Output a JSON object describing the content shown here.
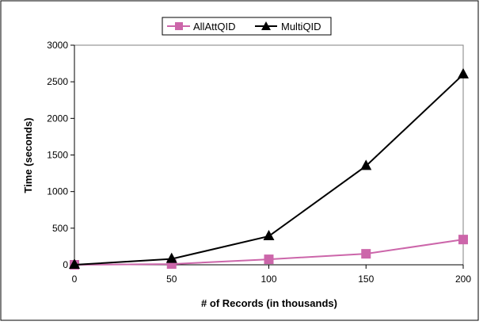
{
  "chart_data": {
    "type": "line",
    "title": "",
    "xlabel": "# of Records (in thousands)",
    "ylabel": "Time (seconds)",
    "x": [
      0,
      50,
      100,
      150,
      200
    ],
    "xlim": [
      0,
      200
    ],
    "ylim": [
      0,
      3000
    ],
    "xticks": [
      "0",
      "50",
      "100",
      "150",
      "200"
    ],
    "yticks": [
      "0",
      "500",
      "1000",
      "1500",
      "2000",
      "2500",
      "3000"
    ],
    "grid": false,
    "legend_position": "top-center",
    "series": [
      {
        "name": "AllAttQID",
        "color": "#cc66aa",
        "marker": "square",
        "values": [
          0,
          10,
          75,
          150,
          345
        ]
      },
      {
        "name": "MultiQID",
        "color": "#000000",
        "marker": "triangle",
        "values": [
          0,
          80,
          390,
          1350,
          2600
        ]
      }
    ]
  }
}
